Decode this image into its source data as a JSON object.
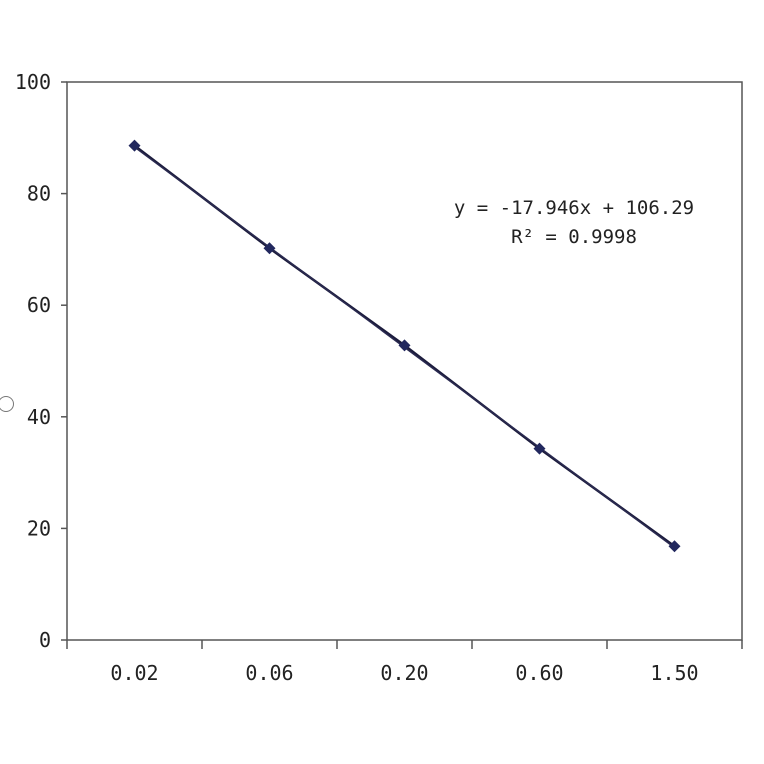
{
  "chart_data": {
    "type": "scatter",
    "categories": [
      "0.02",
      "0.06",
      "0.20",
      "0.60",
      "1.50"
    ],
    "x": [
      1,
      2,
      3,
      4,
      5
    ],
    "series": [
      {
        "values": [
          88.6,
          70.2,
          52.8,
          34.3,
          16.8
        ]
      }
    ],
    "trendline": {
      "type": "linear",
      "slope": -17.946,
      "intercept": 106.29
    },
    "annotations": [
      "y = -17.946x + 106.29",
      "R² = 0.9998"
    ],
    "yticks": [
      "0",
      "20",
      "40",
      "60",
      "80",
      "100"
    ],
    "ylim": [
      0,
      100
    ],
    "xlim": [
      0.5,
      5.5
    ],
    "grid": false,
    "marker": "diamond",
    "colors": {
      "line": "#1c1c3c",
      "marker": "#22285e",
      "axis": "#444444"
    }
  }
}
